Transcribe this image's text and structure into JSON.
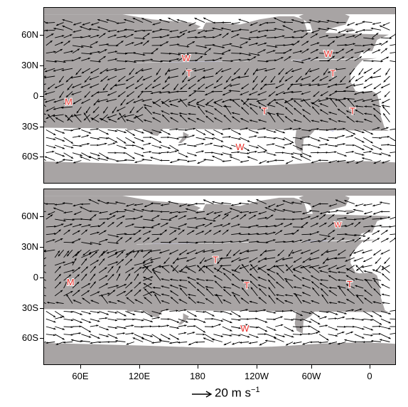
{
  "colors": {
    "land": "#a8a4a4",
    "ocean": "#ffffff",
    "precip": "#a9acdc",
    "label": "#e8302a",
    "arrow": "#000000"
  },
  "axes": {
    "y_ticks": [
      "60N",
      "30N",
      "0",
      "30S",
      "60S"
    ],
    "x_ticks": [
      "60E",
      "120E",
      "180",
      "120W",
      "60W",
      "0"
    ]
  },
  "legend": {
    "arrow_label": "20 m s",
    "unit_exponent": "−1"
  },
  "panels": [
    {
      "id": "top",
      "labels": [
        {
          "text": "W",
          "lon": 175,
          "lat": 37
        },
        {
          "text": "T",
          "lon": 178,
          "lat": 22
        },
        {
          "text": "W",
          "lon": -40,
          "lat": 41
        },
        {
          "text": "T",
          "lon": -35,
          "lat": 22
        },
        {
          "text": "M",
          "lon": 55,
          "lat": -6
        },
        {
          "text": "T",
          "lon": -105,
          "lat": -15
        },
        {
          "text": "T",
          "lon": -15,
          "lat": -15
        },
        {
          "text": "W",
          "lon": -130,
          "lat": -50
        }
      ]
    },
    {
      "id": "bottom",
      "labels": [
        {
          "text": "W",
          "lon": -30,
          "lat": 52
        },
        {
          "text": "T",
          "lon": -155,
          "lat": 17
        },
        {
          "text": "M",
          "lon": 57,
          "lat": -5
        },
        {
          "text": "T",
          "lon": -123,
          "lat": -8
        },
        {
          "text": "T",
          "lon": -18,
          "lat": -7
        },
        {
          "text": "W",
          "lon": -125,
          "lat": -50
        }
      ]
    }
  ]
}
